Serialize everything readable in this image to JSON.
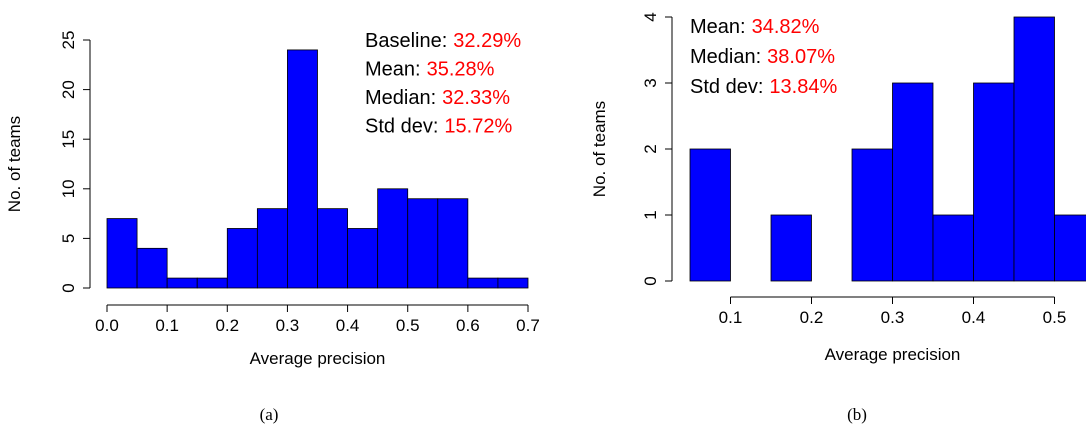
{
  "chart_data": [
    {
      "type": "histogram",
      "x_label": "Average precision",
      "y_label": "No. of teams",
      "caption": "(a)",
      "bins": [
        0.0,
        0.05,
        0.1,
        0.15,
        0.2,
        0.25,
        0.3,
        0.35,
        0.4,
        0.45,
        0.5,
        0.55,
        0.6,
        0.65,
        0.7
      ],
      "values": [
        7,
        4,
        1,
        1,
        6,
        8,
        24,
        8,
        6,
        10,
        9,
        9,
        1,
        1
      ],
      "color": "#0000ff",
      "annotation_color": "#ff0000",
      "xlim": [
        0.0,
        0.7
      ],
      "ylim": [
        0,
        25
      ],
      "xticks": [
        {
          "value": 0,
          "label": "0.0"
        },
        0.1,
        0.2,
        0.3,
        0.4,
        0.5,
        0.6,
        0.7
      ],
      "yticks": [
        0,
        5,
        10,
        15,
        20,
        25
      ],
      "stats": [
        {
          "label": "Baseline:",
          "value": "32.29%"
        },
        {
          "label": "Mean:",
          "value": "35.28%"
        },
        {
          "label": "Median:",
          "value": "32.33%"
        },
        {
          "label": "Std dev:",
          "value": "15.72%"
        }
      ]
    },
    {
      "type": "histogram",
      "x_label": "Average precision",
      "y_label": "No. of teams",
      "caption": "(b)",
      "bins": [
        0.05,
        0.1,
        0.15,
        0.2,
        0.25,
        0.3,
        0.35,
        0.4,
        0.45,
        0.5,
        0.55
      ],
      "values": [
        2,
        0,
        1,
        0,
        2,
        3,
        1,
        3,
        4,
        1
      ],
      "color": "#0000ff",
      "annotation_color": "#ff0000",
      "xlim": [
        0.05,
        0.55
      ],
      "ylim": [
        0,
        4
      ],
      "xticks": [
        0.1,
        0.2,
        0.3,
        0.4,
        0.5
      ],
      "yticks": [
        0,
        1,
        2,
        3,
        4
      ],
      "stats": [
        {
          "label": "Mean:",
          "value": "34.82%"
        },
        {
          "label": "Median:",
          "value": "38.07%"
        },
        {
          "label": "Std dev:",
          "value": "13.84%"
        }
      ]
    }
  ]
}
